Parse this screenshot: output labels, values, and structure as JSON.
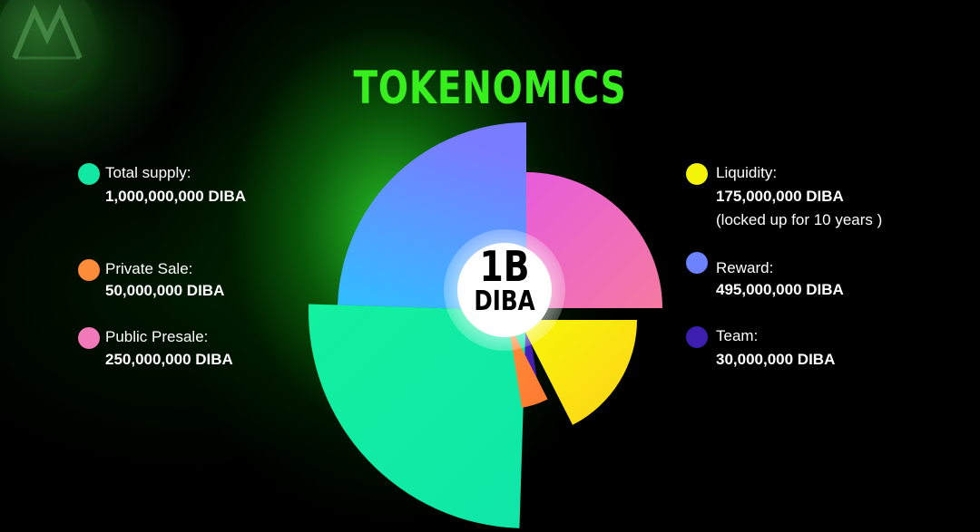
{
  "title": "TOKENOMICS",
  "center": {
    "line1": "1B",
    "line2": "DIBA"
  },
  "legend_left": [
    {
      "label": "Total supply:",
      "value": "1,000,000,000 DIBA",
      "color": "#12e8a2"
    },
    {
      "label": "Private Sale:",
      "value": "50,000,000 DIBA",
      "color": "#ff8c3a"
    },
    {
      "label": "Public Presale:",
      "value": "250,000,000 DIBA",
      "color": "#f07ab8"
    }
  ],
  "legend_right": [
    {
      "label": "Liquidity:",
      "value": "175,000,000 DIBA",
      "note": "(locked up for 10 years )",
      "color": "#f5f50a"
    },
    {
      "label": "Reward:",
      "value": "495,000,000 DIBA",
      "color": "#6d82ff"
    },
    {
      "label": "Team:",
      "value": "30,000,000 DIBA",
      "color": "#3d1fb0"
    }
  ],
  "chart_data": {
    "type": "pie",
    "title": "TOKENOMICS",
    "center_label": "1B DIBA",
    "total": 1000000000,
    "unit": "DIBA",
    "slices": [
      {
        "name": "Public Presale",
        "value": 250000000,
        "colors": [
          "#e85cdc",
          "#f47aa0"
        ]
      },
      {
        "name": "Liquidity",
        "value": 175000000,
        "colors": [
          "#f7f707",
          "#ffd21a"
        ]
      },
      {
        "name": "Private Sale",
        "value": 50000000,
        "colors": [
          "#ff8a3a",
          "#ff7a30"
        ]
      },
      {
        "name": "Team",
        "value": 30000000,
        "colors": [
          "#4a22c0",
          "#3a1aa8"
        ]
      },
      {
        "name": "Reward (teal)",
        "value": 250000000,
        "colors": [
          "#12f0a0",
          "#10e6a8"
        ]
      },
      {
        "name": "Reward (blue)",
        "value": 245000000,
        "colors": [
          "#7a7cff",
          "#2ec0ff"
        ]
      }
    ],
    "legend_position": "left-and-right",
    "legend_entries": [
      "Total supply: 1,000,000,000 DIBA",
      "Private Sale: 50,000,000 DIBA",
      "Public Presale: 250,000,000 DIBA",
      "Liquidity: 175,000,000 DIBA (locked up for 10 years )",
      "Reward: 495,000,000 DIBA",
      "Team: 30,000,000 DIBA"
    ]
  }
}
